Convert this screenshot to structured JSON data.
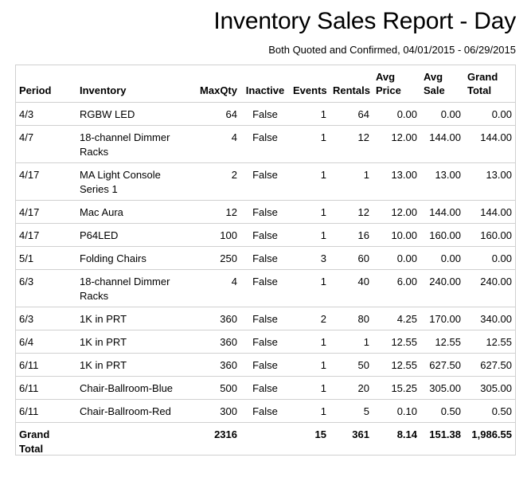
{
  "report": {
    "title": "Inventory Sales Report - Day",
    "subtitle": "Both Quoted and Confirmed, 04/01/2015 - 06/29/2015"
  },
  "columns": {
    "period": "Period",
    "inventory": "Inventory",
    "maxqty": "MaxQty",
    "inactive": "Inactive",
    "events": "Events",
    "rentals": "Rentals",
    "avg_price_1": "Avg",
    "avg_price_2": "Price",
    "avg_sale_1": "Avg",
    "avg_sale_2": "Sale",
    "grand_total_1": "Grand",
    "grand_total_2": "Total"
  },
  "rows": [
    {
      "period": "4/3",
      "inventory": "RGBW LED",
      "maxqty": "64",
      "inactive": "False",
      "events": "1",
      "rentals": "64",
      "avg_price": "0.00",
      "avg_sale": "0.00",
      "grand_total": "0.00"
    },
    {
      "period": "4/7",
      "inventory": "18-channel Dimmer Racks",
      "maxqty": "4",
      "inactive": "False",
      "events": "1",
      "rentals": "12",
      "avg_price": "12.00",
      "avg_sale": "144.00",
      "grand_total": "144.00"
    },
    {
      "period": "4/17",
      "inventory": "MA Light Console Series 1",
      "maxqty": "2",
      "inactive": "False",
      "events": "1",
      "rentals": "1",
      "avg_price": "13.00",
      "avg_sale": "13.00",
      "grand_total": "13.00"
    },
    {
      "period": "4/17",
      "inventory": "Mac Aura",
      "maxqty": "12",
      "inactive": "False",
      "events": "1",
      "rentals": "12",
      "avg_price": "12.00",
      "avg_sale": "144.00",
      "grand_total": "144.00"
    },
    {
      "period": "4/17",
      "inventory": "P64LED",
      "maxqty": "100",
      "inactive": "False",
      "events": "1",
      "rentals": "16",
      "avg_price": "10.00",
      "avg_sale": "160.00",
      "grand_total": "160.00"
    },
    {
      "period": "5/1",
      "inventory": "Folding Chairs",
      "maxqty": "250",
      "inactive": "False",
      "events": "3",
      "rentals": "60",
      "avg_price": "0.00",
      "avg_sale": "0.00",
      "grand_total": "0.00"
    },
    {
      "period": "6/3",
      "inventory": "18-channel Dimmer Racks",
      "maxqty": "4",
      "inactive": "False",
      "events": "1",
      "rentals": "40",
      "avg_price": "6.00",
      "avg_sale": "240.00",
      "grand_total": "240.00"
    },
    {
      "period": "6/3",
      "inventory": "1K in PRT",
      "maxqty": "360",
      "inactive": "False",
      "events": "2",
      "rentals": "80",
      "avg_price": "4.25",
      "avg_sale": "170.00",
      "grand_total": "340.00"
    },
    {
      "period": "6/4",
      "inventory": "1K in PRT",
      "maxqty": "360",
      "inactive": "False",
      "events": "1",
      "rentals": "1",
      "avg_price": "12.55",
      "avg_sale": "12.55",
      "grand_total": "12.55"
    },
    {
      "period": "6/11",
      "inventory": "1K in PRT",
      "maxqty": "360",
      "inactive": "False",
      "events": "1",
      "rentals": "50",
      "avg_price": "12.55",
      "avg_sale": "627.50",
      "grand_total": "627.50"
    },
    {
      "period": "6/11",
      "inventory": "Chair-Ballroom-Blue",
      "maxqty": "500",
      "inactive": "False",
      "events": "1",
      "rentals": "20",
      "avg_price": "15.25",
      "avg_sale": "305.00",
      "grand_total": "305.00"
    },
    {
      "period": "6/11",
      "inventory": "Chair-Ballroom-Red",
      "maxqty": "300",
      "inactive": "False",
      "events": "1",
      "rentals": "5",
      "avg_price": "0.10",
      "avg_sale": "0.50",
      "grand_total": "0.50"
    }
  ],
  "totals": {
    "label_1": "Grand",
    "label_2": "Total",
    "maxqty": "2316",
    "events": "15",
    "rentals": "361",
    "avg_price": "8.14",
    "avg_sale": "151.38",
    "grand_total": "1,986.55"
  }
}
